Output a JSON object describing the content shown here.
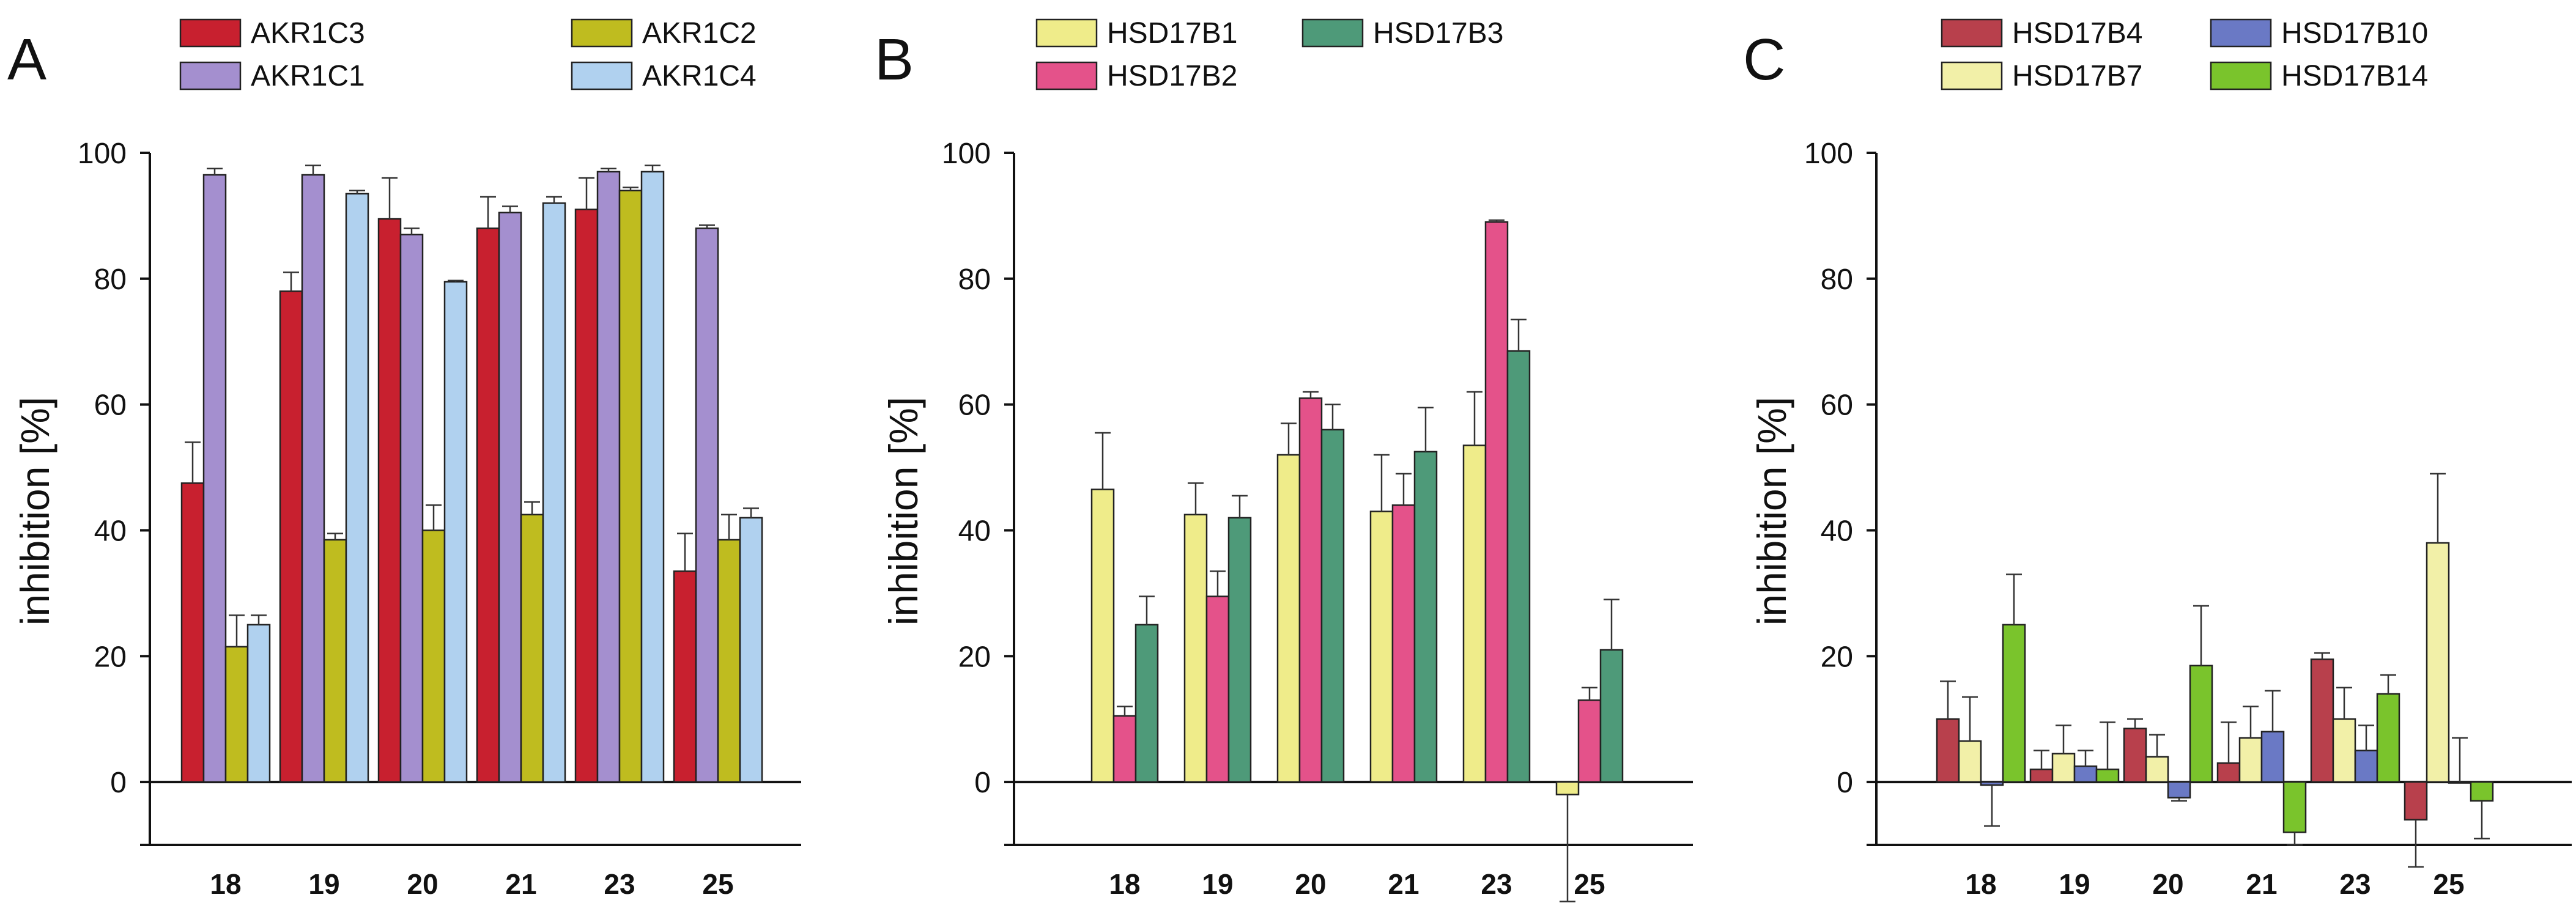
{
  "chart_data": [
    {
      "panel": "A",
      "type": "bar",
      "ylabel": "inhibition [%]",
      "ylim": [
        -10,
        100
      ],
      "yticks": [
        0,
        20,
        40,
        60,
        80,
        100
      ],
      "categories": [
        "18",
        "19",
        "20",
        "21",
        "23",
        "25"
      ],
      "legend": [
        "AKR1C3",
        "AKR1C2",
        "AKR1C1",
        "AKR1C4"
      ],
      "series": [
        {
          "name": "AKR1C3",
          "color": "#c8202f",
          "values": [
            47.5,
            78,
            89.5,
            88,
            91,
            33.5
          ],
          "errors": [
            6.5,
            3,
            6.5,
            5,
            5,
            6
          ]
        },
        {
          "name": "AKR1C1",
          "color": "#a48fcf",
          "values": [
            96.5,
            96.5,
            87,
            90.5,
            97,
            88
          ],
          "errors": [
            1,
            1.5,
            1,
            1,
            0.5,
            0.5
          ]
        },
        {
          "name": "AKR1C2",
          "color": "#bfbc1f",
          "values": [
            21.5,
            38.5,
            40,
            42.5,
            94,
            38.5
          ],
          "errors": [
            5,
            1,
            4,
            2,
            0.5,
            4
          ]
        },
        {
          "name": "AKR1C4",
          "color": "#b0d1ef",
          "values": [
            25,
            93.5,
            79.5,
            92,
            97,
            42
          ],
          "errors": [
            1.5,
            0.5,
            0.2,
            1,
            1,
            1.5
          ]
        }
      ]
    },
    {
      "panel": "B",
      "type": "bar",
      "ylabel": "inhibition [%]",
      "ylim": [
        -10,
        100
      ],
      "yticks": [
        0,
        20,
        40,
        60,
        80,
        100
      ],
      "categories": [
        "18",
        "19",
        "20",
        "21",
        "23",
        "25"
      ],
      "legend": [
        "HSD17B1",
        "HSD17B3",
        "HSD17B2"
      ],
      "series": [
        {
          "name": "HSD17B1",
          "color": "#efec8a",
          "values": [
            46.5,
            42.5,
            52,
            43,
            53.5,
            -2
          ],
          "errors": [
            9,
            5,
            5,
            9,
            8.5,
            17
          ]
        },
        {
          "name": "HSD17B2",
          "color": "#e4528a",
          "values": [
            10.5,
            29.5,
            61,
            44,
            89,
            13
          ],
          "errors": [
            1.5,
            4,
            1,
            5,
            0.3,
            2
          ]
        },
        {
          "name": "HSD17B3",
          "color": "#4e9a79",
          "values": [
            25,
            42,
            56,
            52.5,
            68.5,
            21
          ],
          "errors": [
            4.5,
            3.5,
            4,
            7,
            5,
            8
          ]
        }
      ]
    },
    {
      "panel": "C",
      "type": "bar",
      "ylabel": "inhibition [%]",
      "ylim": [
        -10,
        100
      ],
      "yticks": [
        0,
        20,
        40,
        60,
        80,
        100
      ],
      "categories": [
        "18",
        "19",
        "20",
        "21",
        "23",
        "25"
      ],
      "legend": [
        "HSD17B4",
        "HSD17B10",
        "HSD17B7",
        "HSD17B14"
      ],
      "series": [
        {
          "name": "HSD17B4",
          "color": "#b8404c",
          "values": [
            10,
            2,
            8.5,
            3,
            19.5,
            -6
          ],
          "errors": [
            6,
            3,
            1.5,
            6.5,
            1,
            7.5
          ]
        },
        {
          "name": "HSD17B7",
          "color": "#f2f0a8",
          "values": [
            6.5,
            4.5,
            4,
            7,
            10,
            38
          ],
          "errors": [
            7,
            4.5,
            3.5,
            5,
            5,
            11
          ]
        },
        {
          "name": "HSD17B10",
          "color": "#6a79c5",
          "values": [
            -0.5,
            2.5,
            -2.5,
            8,
            5,
            0
          ],
          "errors": [
            6.5,
            2.5,
            0.5,
            6.5,
            4,
            7
          ]
        },
        {
          "name": "HSD17B14",
          "color": "#7ac42c",
          "values": [
            25,
            2,
            18.5,
            -8,
            14,
            -3
          ],
          "errors": [
            8,
            7.5,
            9.5,
            2,
            3,
            6
          ]
        }
      ]
    }
  ]
}
